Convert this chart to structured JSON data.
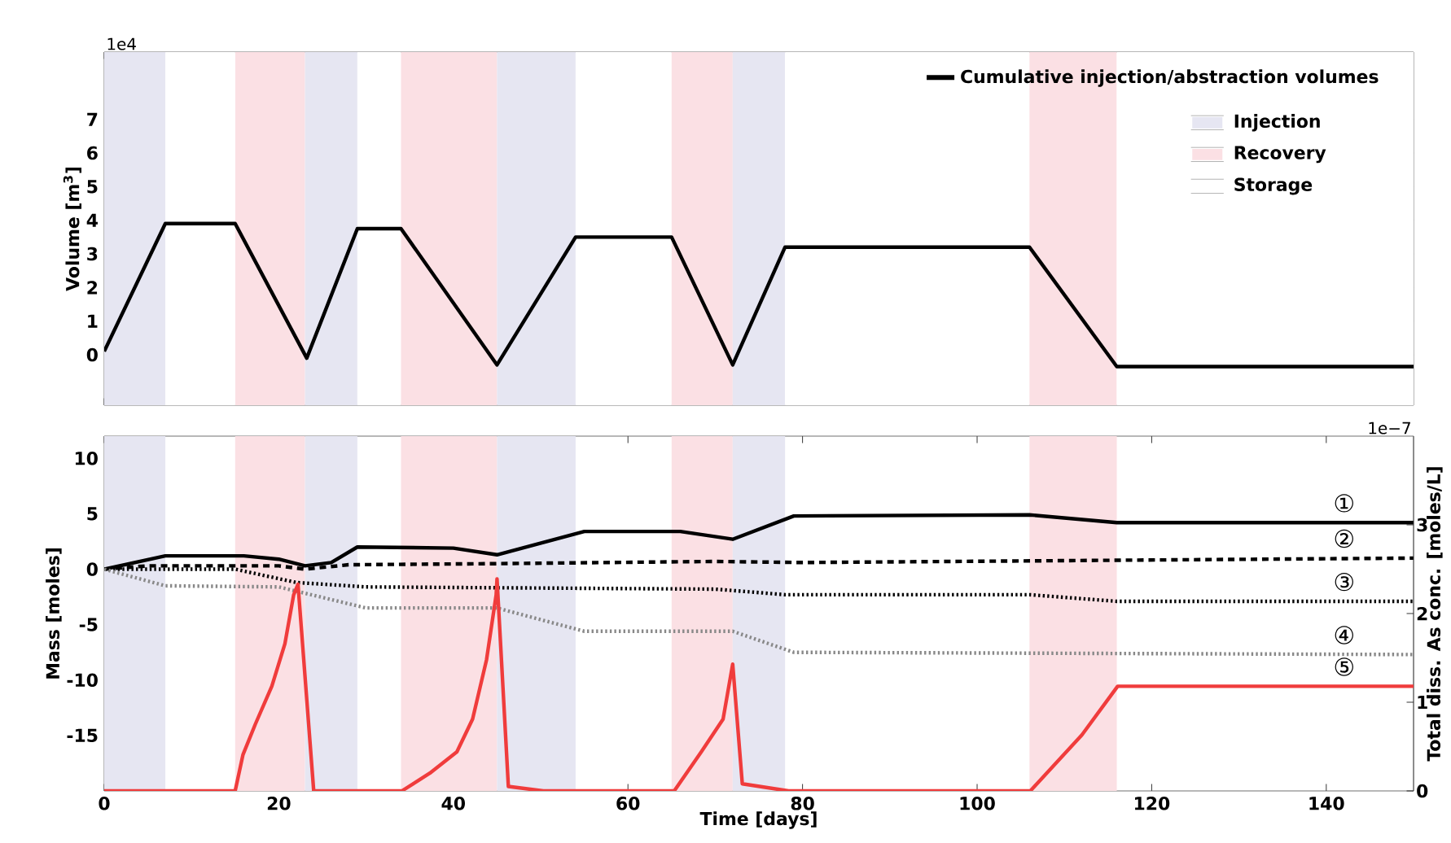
{
  "chart_data": [
    {
      "type": "line",
      "ylabel": "Volume [m$^{3}$]",
      "annotations": [
        "1e4",
        "Injection",
        "Recovery",
        "Storage"
      ],
      "xlim": [
        0,
        150
      ],
      "ylim": [
        -1.5,
        9
      ],
      "xticks": [
        0,
        20,
        40,
        60,
        80,
        100,
        120,
        140
      ],
      "yticks": [
        0,
        1,
        2,
        3,
        4,
        5,
        6,
        7
      ],
      "tick_labels": "y",
      "legend": "top right",
      "series": [
        {
          "name": "Cumulative injection/abstraction volumes",
          "color": "#000000",
          "line_style": "solid",
          "x": [
            0,
            7,
            15,
            23.2,
            29,
            34,
            45,
            54,
            65,
            72,
            78,
            106,
            116,
            150
          ],
          "values": [
            0.1,
            3.9,
            3.9,
            -0.1,
            3.75,
            3.75,
            -0.3,
            3.5,
            3.5,
            -0.3,
            3.2,
            3.2,
            -0.35,
            -0.35
          ]
        }
      ],
      "bands": [
        {
          "axis": "x",
          "from": 0,
          "to": 7,
          "color": "#e6e6f2"
        },
        {
          "axis": "x",
          "from": 15,
          "to": 23,
          "color": "#fbe0e4"
        },
        {
          "axis": "x",
          "from": 7,
          "to": 15,
          "color": "#ffffff"
        },
        {
          "axis": "x",
          "from": 23,
          "to": 29,
          "color": "#e6e6f2"
        },
        {
          "axis": "x",
          "from": 29,
          "to": 34,
          "color": "#ffffff"
        },
        {
          "axis": "x",
          "from": 34,
          "to": 45,
          "color": "#fbe0e4"
        },
        {
          "axis": "x",
          "from": 45,
          "to": 54,
          "color": "#e6e6f2"
        },
        {
          "axis": "x",
          "from": 54,
          "to": 65,
          "color": "#ffffff"
        },
        {
          "axis": "x",
          "from": 65,
          "to": 72,
          "color": "#fbe0e4"
        },
        {
          "axis": "x",
          "from": 72,
          "to": 78,
          "color": "#e6e6f2"
        },
        {
          "axis": "x",
          "from": 78,
          "to": 106,
          "color": "#ffffff"
        },
        {
          "axis": "x",
          "from": 106,
          "to": 116,
          "color": "#fbe0e4"
        },
        {
          "axis": "x",
          "from": 116,
          "to": 150,
          "color": "#ffffff"
        }
      ]
    },
    {
      "type": "line",
      "xlabel": "Time [days]",
      "ylabel": "Mass [moles]",
      "y2label": "Total diss. As conc. [moles/L]",
      "xlim": [
        0,
        150
      ],
      "ylim": [
        -20,
        12
      ],
      "y2lim": [
        0,
        4
      ],
      "xticks": [
        0,
        20,
        40,
        60,
        80,
        100,
        120,
        140
      ],
      "yticks": [
        -15,
        -10,
        -5,
        0,
        5,
        10
      ],
      "y2ticks": [
        0,
        1,
        2,
        3
      ],
      "annotations": [
        "1e−7",
        "①",
        "②",
        "③",
        "④",
        "⑤"
      ],
      "series": [
        {
          "color": "#000000",
          "line_style": "solid",
          "x": [
            0,
            7,
            16,
            20,
            23,
            26,
            29,
            40,
            45,
            55,
            66,
            72,
            79,
            106,
            116,
            150
          ],
          "values": [
            0,
            1.2,
            1.2,
            0.9,
            0.3,
            0.6,
            2.0,
            1.9,
            1.3,
            3.4,
            3.4,
            2.7,
            4.8,
            4.9,
            4.2,
            4.2
          ]
        },
        {
          "color": "#000000",
          "line_style": "dashed",
          "x": [
            0,
            5,
            20,
            23,
            28,
            45,
            70,
            80,
            150
          ],
          "values": [
            0,
            0.3,
            0.3,
            0,
            0.4,
            0.5,
            0.7,
            0.6,
            1.0
          ]
        },
        {
          "color": "#000000",
          "line_style": "dotted",
          "x": [
            0,
            15,
            22,
            30,
            70,
            78,
            106,
            116,
            150
          ],
          "values": [
            0,
            0,
            -1.2,
            -1.6,
            -1.8,
            -2.3,
            -2.3,
            -2.9,
            -2.9
          ]
        },
        {
          "color": "#888888",
          "line_style": "dotted",
          "x": [
            0,
            7,
            20,
            30,
            45,
            55,
            72,
            79,
            150
          ],
          "values": [
            0,
            -1.5,
            -1.6,
            -3.5,
            -3.5,
            -5.6,
            -5.6,
            -7.5,
            -7.7
          ]
        },
        {
          "color": "#f03c3c",
          "line_style": "solid",
          "axis": "y2",
          "x": [
            0,
            15,
            15.9,
            17.3,
            19.2,
            20.7,
            21.7,
            22.2,
            24,
            34.1,
            37.3,
            40.4,
            42.2,
            43.8,
            44.9,
            45,
            46.3,
            50.3,
            65.3,
            68.4,
            70.9,
            72,
            73.1,
            78.4,
            106.1,
            112,
            116.1,
            150
          ],
          "values": [
            0,
            0,
            0.41,
            0.75,
            1.18,
            1.66,
            2.21,
            2.33,
            0,
            0,
            0.2,
            0.44,
            0.81,
            1.48,
            2.21,
            2.39,
            0.05,
            0,
            0,
            0.44,
            0.81,
            1.43,
            0.08,
            0,
            0,
            0.63,
            1.18,
            1.18
          ]
        }
      ],
      "bands": [
        {
          "axis": "x",
          "from": 0,
          "to": 7,
          "color": "#e6e6f2"
        },
        {
          "axis": "x",
          "from": 15,
          "to": 23,
          "color": "#fbe0e4"
        },
        {
          "axis": "x",
          "from": 23,
          "to": 29,
          "color": "#e6e6f2"
        },
        {
          "axis": "x",
          "from": 34,
          "to": 45,
          "color": "#fbe0e4"
        },
        {
          "axis": "x",
          "from": 45,
          "to": 54,
          "color": "#e6e6f2"
        },
        {
          "axis": "x",
          "from": 65,
          "to": 72,
          "color": "#fbe0e4"
        },
        {
          "axis": "x",
          "from": 72,
          "to": 78,
          "color": "#e6e6f2"
        },
        {
          "axis": "x",
          "from": 106,
          "to": 116,
          "color": "#fbe0e4"
        }
      ]
    }
  ]
}
